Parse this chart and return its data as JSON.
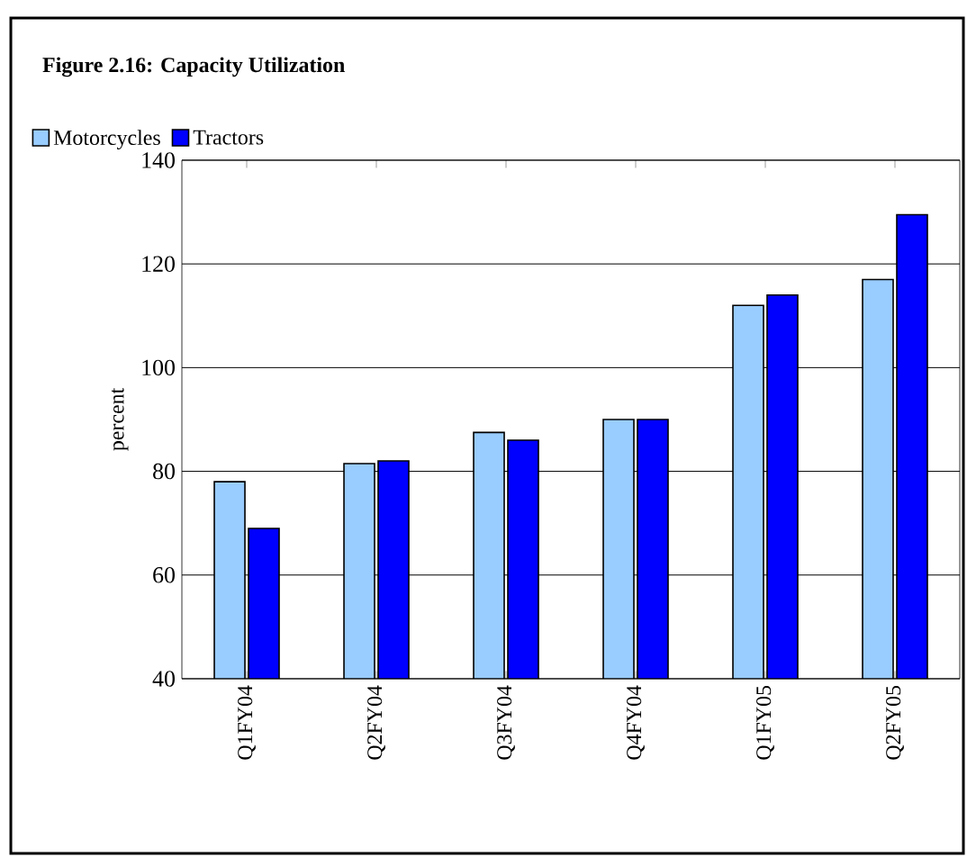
{
  "chart_data": {
    "type": "bar",
    "title": "Figure 2.16: Capacity Utilization",
    "ylabel": "percent",
    "categories": [
      "Q1FY04",
      "Q2FY04",
      "Q3FY04",
      "Q4FY04",
      "Q1FY05",
      "Q2FY05"
    ],
    "series": [
      {
        "name": "Motorcycles",
        "color": "#99ccff",
        "values": [
          78,
          81.5,
          87.5,
          90,
          112,
          117
        ]
      },
      {
        "name": "Tractors",
        "color": "#0000ff",
        "values": [
          69,
          82,
          86,
          90,
          114,
          129.5
        ]
      }
    ],
    "ylim": [
      40,
      140
    ],
    "yticks": [
      40,
      60,
      80,
      100,
      120,
      140
    ],
    "grid": "y",
    "legend": "top left"
  }
}
